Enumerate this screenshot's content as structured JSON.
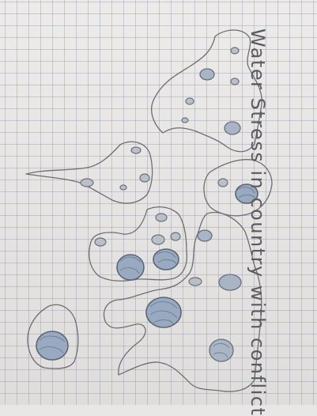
{
  "map": {
    "title": "Water Stress in country with conflict",
    "colors": {
      "paper": "#ebe9e8",
      "grid": "#7a8291",
      "pencil": "#6d6d72",
      "conflict_spot_fill": "#a9b4c4"
    },
    "regions": [
      "north-arm",
      "west-peninsula",
      "east-lobe",
      "central-cluster",
      "south-landmass",
      "southwest-island"
    ],
    "spot_counts": {
      "small": 14,
      "medium": 6,
      "large": 5
    }
  }
}
